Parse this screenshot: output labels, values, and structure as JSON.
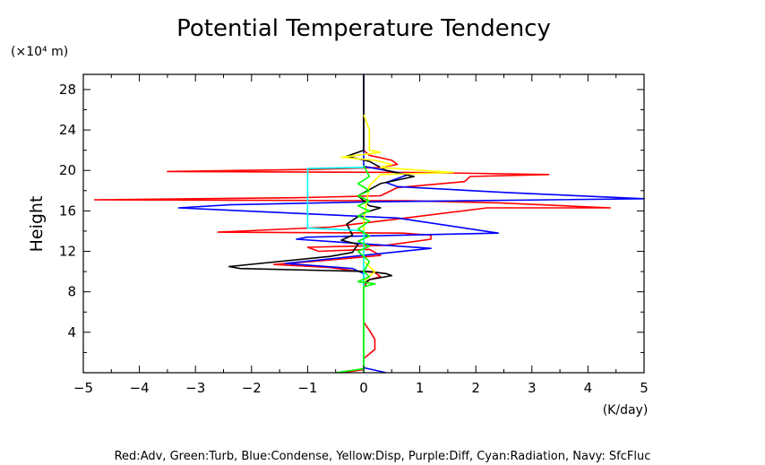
{
  "chart_data": {
    "type": "line",
    "title": "Potential Temperature Tendency",
    "ylabel": "Height",
    "y_unit": "(×10⁴ m)",
    "x_unit": "(K/day)",
    "xlim": [
      -5,
      5
    ],
    "ylim": [
      0,
      29.5
    ],
    "x_ticks": [
      -5,
      -4,
      -3,
      -2,
      -1,
      0,
      1,
      2,
      3,
      4,
      5
    ],
    "y_ticks": [
      4,
      8,
      12,
      16,
      20,
      24,
      28
    ],
    "footer": "Red:Adv, Green:Turb, Blue:Condense, Yellow:Disp, Purple:Diff, Cyan:Radiation, Navy: SfcFluc",
    "series": [
      {
        "color": "#ff0000",
        "points": [
          [
            0,
            29.5
          ],
          [
            0,
            22
          ],
          [
            0.1,
            21.5
          ],
          [
            0.5,
            21
          ],
          [
            0.6,
            20.6
          ],
          [
            0.3,
            20.3
          ],
          [
            -0.9,
            20.1
          ],
          [
            -3.5,
            19.9
          ],
          [
            1.0,
            19.8
          ],
          [
            3.3,
            19.6
          ],
          [
            1.9,
            19.4
          ],
          [
            1.8,
            18.9
          ],
          [
            0.6,
            18.3
          ],
          [
            0.3,
            17.5
          ],
          [
            -1.2,
            17.3
          ],
          [
            -4.8,
            17.1
          ],
          [
            0.8,
            17.0
          ],
          [
            2.4,
            16.8
          ],
          [
            4.4,
            16.3
          ],
          [
            2.2,
            16.3
          ],
          [
            0.6,
            15.2
          ],
          [
            -0.6,
            14.4
          ],
          [
            -2.6,
            13.9
          ],
          [
            0.7,
            13.8
          ],
          [
            1.2,
            13.6
          ],
          [
            1.2,
            13.2
          ],
          [
            0.4,
            12.6
          ],
          [
            -1.0,
            12.4
          ],
          [
            -0.8,
            12.0
          ],
          [
            0.1,
            12.2
          ],
          [
            0.3,
            11.6
          ],
          [
            -0.7,
            11.1
          ],
          [
            -1.6,
            10.7
          ],
          [
            -0.6,
            10.4
          ],
          [
            -0.2,
            10.1
          ],
          [
            0.2,
            9.9
          ],
          [
            0.3,
            9.5
          ],
          [
            0.1,
            9.2
          ],
          [
            0,
            8.5
          ],
          [
            0,
            5
          ],
          [
            0.1,
            4.2
          ],
          [
            0.2,
            3.3
          ],
          [
            0.2,
            2.3
          ],
          [
            0,
            1.4
          ],
          [
            0,
            0.3
          ],
          [
            -0.4,
            0
          ]
        ]
      },
      {
        "color": "#0000ff",
        "points": [
          [
            0,
            29.5
          ],
          [
            0,
            20.4
          ],
          [
            0.8,
            19.6
          ],
          [
            0.4,
            18.8
          ],
          [
            0.6,
            18.4
          ],
          [
            2.6,
            17.8
          ],
          [
            5.0,
            17.2
          ],
          [
            0.2,
            16.9
          ],
          [
            -2.4,
            16.6
          ],
          [
            -3.3,
            16.3
          ],
          [
            0.6,
            15.3
          ],
          [
            2.4,
            13.8
          ],
          [
            -1.0,
            13.4
          ],
          [
            -1.2,
            13.2
          ],
          [
            1.2,
            12.3
          ],
          [
            -1.4,
            10.8
          ],
          [
            -0.2,
            10.3
          ],
          [
            0,
            9.8
          ],
          [
            0,
            0.5
          ],
          [
            0.4,
            0
          ]
        ]
      },
      {
        "color": "#000000",
        "points": [
          [
            0,
            29.5
          ],
          [
            0,
            22.0
          ],
          [
            -0.3,
            21.4
          ],
          [
            0.1,
            20.9
          ],
          [
            0.4,
            20.0
          ],
          [
            0.9,
            19.4
          ],
          [
            0.3,
            18.7
          ],
          [
            -0.1,
            17.5
          ],
          [
            0.1,
            16.5
          ],
          [
            0.3,
            16.3
          ],
          [
            0,
            15.8
          ],
          [
            -0.3,
            14.7
          ],
          [
            -0.2,
            13.6
          ],
          [
            -0.4,
            13.1
          ],
          [
            -0.1,
            12.7
          ],
          [
            -0.2,
            11.9
          ],
          [
            -0.6,
            11.5
          ],
          [
            -2.4,
            10.5
          ],
          [
            -2.2,
            10.3
          ],
          [
            0.1,
            10.0
          ],
          [
            0.4,
            9.8
          ],
          [
            0.5,
            9.6
          ],
          [
            0.1,
            9.2
          ],
          [
            0,
            8.8
          ],
          [
            0,
            0
          ]
        ]
      },
      {
        "color": "#ffff00",
        "points": [
          [
            0,
            25.5
          ],
          [
            0.1,
            24.0
          ],
          [
            0.1,
            22.0
          ],
          [
            0.3,
            21.8
          ],
          [
            -0.4,
            21.3
          ],
          [
            0.2,
            21.0
          ],
          [
            0.5,
            20.6
          ],
          [
            0.3,
            20.3
          ],
          [
            1.6,
            19.8
          ],
          [
            0.3,
            19.6
          ],
          [
            0.1,
            18.5
          ],
          [
            0,
            15
          ],
          [
            0,
            11
          ],
          [
            0.2,
            10.0
          ],
          [
            0,
            9.0
          ],
          [
            0,
            0
          ]
        ]
      },
      {
        "color": "#00ffff",
        "points": [
          [
            0,
            20.3
          ],
          [
            -1.0,
            20.2
          ],
          [
            -1.0,
            14.3
          ],
          [
            -0.2,
            14.1
          ],
          [
            0,
            14.0
          ],
          [
            0,
            0
          ]
        ]
      },
      {
        "color": "#00ff00",
        "points": [
          [
            0,
            20.5
          ],
          [
            0.1,
            19.4
          ],
          [
            -0.1,
            18.7
          ],
          [
            0.1,
            18.0
          ],
          [
            -0.1,
            17.5
          ],
          [
            0.1,
            17.0
          ],
          [
            -0.1,
            16.5
          ],
          [
            0.1,
            16.0
          ],
          [
            -0.1,
            15.5
          ],
          [
            0.1,
            15.0
          ],
          [
            -0.1,
            14.2
          ],
          [
            0.1,
            13.5
          ],
          [
            -0.1,
            13.0
          ],
          [
            0.1,
            12.5
          ],
          [
            -0.1,
            12.0
          ],
          [
            0,
            11.5
          ],
          [
            0.1,
            11.0
          ],
          [
            0,
            10.0
          ],
          [
            0.1,
            9.5
          ],
          [
            -0.1,
            9.0
          ],
          [
            0.2,
            8.8
          ],
          [
            0,
            8.5
          ],
          [
            0,
            0.4
          ],
          [
            -0.5,
            0
          ]
        ]
      }
    ]
  }
}
